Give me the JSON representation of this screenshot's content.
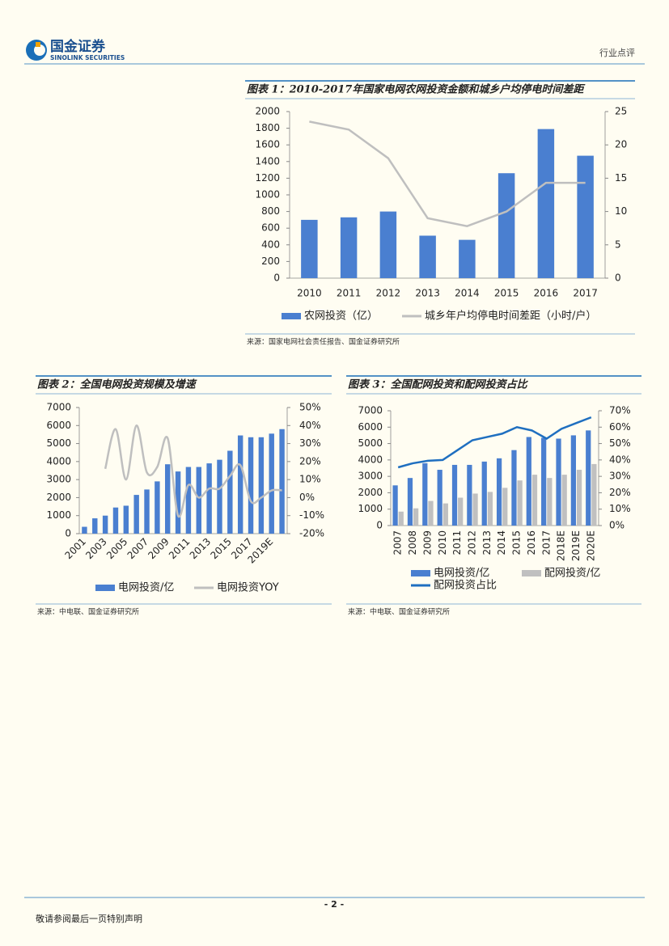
{
  "header": {
    "company": "国金证券",
    "company_en": "SINOLINK SECURITIES",
    "section": "行业点评"
  },
  "chart_data": [
    {
      "type": "bar",
      "title": "图表 1：2010-2017年国家电网农网投资金额和城乡户均停电时间差距",
      "source": "来源：国家电网社会责任报告、国金证券研究所",
      "categories": [
        "2010",
        "2011",
        "2012",
        "2013",
        "2014",
        "2015",
        "2016",
        "2017"
      ],
      "series": [
        {
          "name": "农网投资（亿）",
          "type": "bar",
          "color": "#4a7fd0",
          "values": [
            700,
            730,
            800,
            510,
            460,
            1260,
            1790,
            1470
          ]
        },
        {
          "name": "城乡年户均停电时间差距（小时/户）",
          "type": "line",
          "axis": "y2",
          "color": "#bfbfbf",
          "values": [
            23.5,
            22.3,
            18,
            9,
            7.8,
            10,
            14.3,
            14.3
          ]
        }
      ],
      "ylim": [
        0,
        2000
      ],
      "yticks": [
        0,
        200,
        400,
        600,
        800,
        1000,
        1200,
        1400,
        1600,
        1800,
        2000
      ],
      "y2lim": [
        0,
        25
      ],
      "y2ticks": [
        0,
        5,
        10,
        15,
        20,
        25
      ]
    },
    {
      "type": "bar",
      "title": "图表 2：全国电网投资规模及增速",
      "source": "来源：中电联、国金证券研究所",
      "smooth": true,
      "categories": [
        "2001",
        null,
        "2003",
        null,
        "2005",
        null,
        "2007",
        null,
        "2009",
        null,
        "2011",
        null,
        "2013",
        null,
        "2015",
        null,
        "2017",
        null,
        "2019E",
        null
      ],
      "series": [
        {
          "name": "电网投资/亿",
          "type": "bar",
          "color": "#4a7fd0",
          "values": [
            380,
            850,
            1000,
            1450,
            1550,
            2150,
            2450,
            2900,
            3850,
            3450,
            3700,
            3700,
            3900,
            4100,
            4600,
            5450,
            5350,
            5350,
            5550,
            5800
          ]
        },
        {
          "name": "电网投资YOY",
          "type": "line",
          "axis": "y2",
          "color": "#bfbfbf",
          "values": [
            null,
            null,
            16,
            38,
            10,
            40,
            14,
            17,
            33,
            -10,
            7,
            0,
            5,
            5,
            12,
            18,
            -2,
            0,
            4,
            4
          ]
        }
      ],
      "ylim": [
        0,
        7000
      ],
      "yticks": [
        0,
        1000,
        2000,
        3000,
        4000,
        5000,
        6000,
        7000
      ],
      "y2lim": [
        -20,
        50
      ],
      "y2ticks": [
        {
          "value": -20,
          "label": "-20%"
        },
        {
          "value": -10,
          "label": "-10%"
        },
        {
          "value": 0,
          "label": "0%"
        },
        {
          "value": 10,
          "label": "10%"
        },
        {
          "value": 20,
          "label": "20%"
        },
        {
          "value": 30,
          "label": "30%"
        },
        {
          "value": 40,
          "label": "40%"
        },
        {
          "value": 50,
          "label": "50%"
        }
      ]
    },
    {
      "type": "bar",
      "title": "图表 3：全国配网投资和配网投资占比",
      "source": "来源：中电联、国金证券研究所",
      "categories": [
        "2007",
        "2008",
        "2009",
        "2010",
        "2011",
        "2012",
        "2013",
        "2014",
        "2015",
        "2016",
        "2017",
        "2018E",
        "2019E",
        "2020E"
      ],
      "series": [
        {
          "name": "电网投资/亿",
          "type": "bar",
          "color": "#4a7fd0",
          "values": [
            2450,
            2900,
            3800,
            3400,
            3700,
            3700,
            3900,
            4100,
            4600,
            5400,
            5350,
            5300,
            5500,
            5800
          ]
        },
        {
          "name": "配网投资/亿",
          "type": "bar",
          "color": "#c0c0c0",
          "values": [
            850,
            1050,
            1500,
            1350,
            1700,
            1950,
            2050,
            2300,
            2750,
            3100,
            2900,
            3100,
            3400,
            3750
          ]
        },
        {
          "name": "配网投资占比",
          "type": "line",
          "axis": "y2",
          "color": "#1f6fc0",
          "values": [
            35.5,
            38,
            39.5,
            40,
            46,
            52,
            54,
            56,
            60,
            58,
            53,
            59,
            62.5,
            66
          ]
        }
      ],
      "ylim": [
        0,
        7000
      ],
      "yticks": [
        0,
        1000,
        2000,
        3000,
        4000,
        5000,
        6000,
        7000
      ],
      "y2lim": [
        0,
        70
      ],
      "y2ticks": [
        {
          "value": 0,
          "label": "0%"
        },
        {
          "value": 10,
          "label": "10%"
        },
        {
          "value": 20,
          "label": "20%"
        },
        {
          "value": 30,
          "label": "30%"
        },
        {
          "value": 40,
          "label": "40%"
        },
        {
          "value": 50,
          "label": "50%"
        },
        {
          "value": 60,
          "label": "60%"
        },
        {
          "value": 70,
          "label": "70%"
        }
      ]
    }
  ],
  "footer": {
    "page": "- 2 -",
    "disclaimer": "敬请参阅最后一页特别声明"
  }
}
